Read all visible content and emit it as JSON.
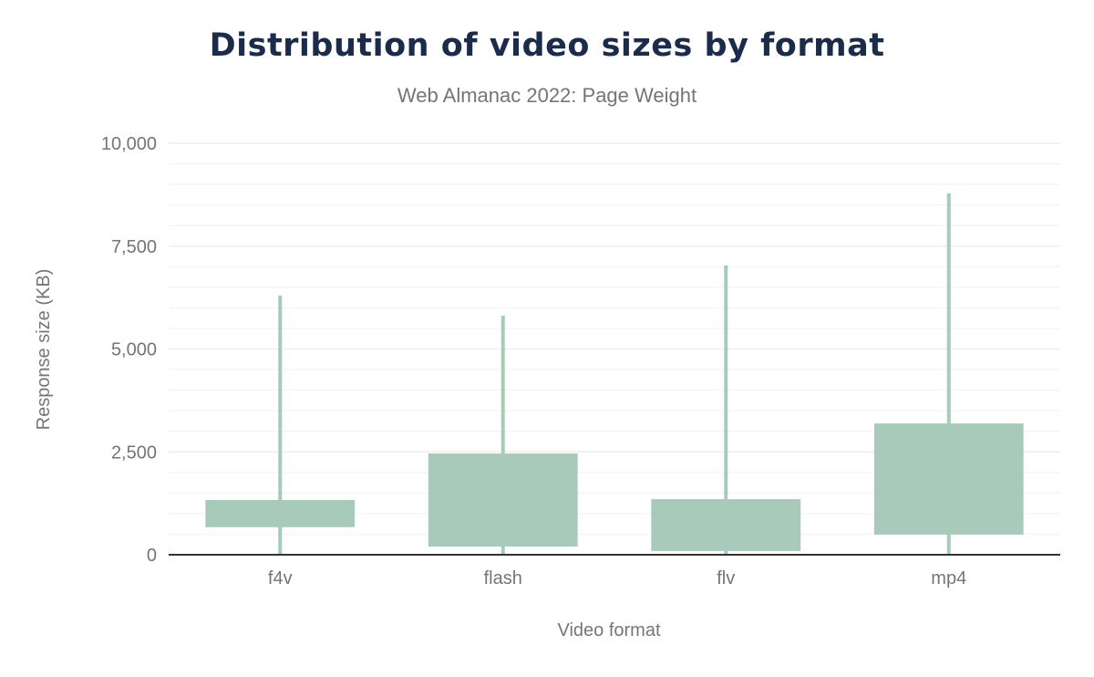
{
  "chart_data": {
    "type": "box",
    "title": "Distribution of video sizes by format",
    "subtitle": "Web Almanac 2022: Page Weight",
    "xlabel": "Video format",
    "ylabel": "Response size (KB)",
    "ylim": [
      0,
      10000
    ],
    "yticks": [
      0,
      2500,
      5000,
      7500,
      10000
    ],
    "ytick_labels": [
      "0",
      "2,500",
      "5,000",
      "7,500",
      "10,000"
    ],
    "grid": true,
    "color": "#a8cabb",
    "categories": [
      "f4v",
      "flash",
      "flv",
      "mp4"
    ],
    "boxes": [
      {
        "category": "f4v",
        "min": 0,
        "q1": 670,
        "q3": 1330,
        "max": 6300
      },
      {
        "category": "flash",
        "min": 0,
        "q1": 200,
        "q3": 2460,
        "max": 5810
      },
      {
        "category": "flv",
        "min": 0,
        "q1": 90,
        "q3": 1350,
        "max": 7030
      },
      {
        "category": "mp4",
        "min": 0,
        "q1": 490,
        "q3": 3190,
        "max": 8780
      }
    ]
  }
}
